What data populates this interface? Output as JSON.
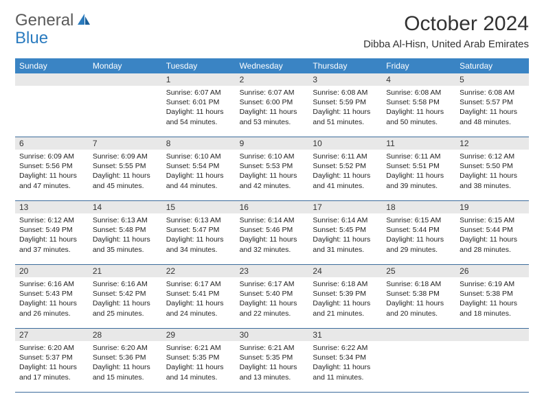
{
  "logo": {
    "text1": "General",
    "text2": "Blue"
  },
  "title": "October 2024",
  "location": "Dibba Al-Hisn, United Arab Emirates",
  "colors": {
    "header_bg": "#3a84c4",
    "header_text": "#ffffff",
    "daynum_bg": "#e8e8e8",
    "week_border": "#3a6a9a",
    "logo_gray": "#5a5a5a",
    "logo_blue": "#2a7bbf"
  },
  "day_names": [
    "Sunday",
    "Monday",
    "Tuesday",
    "Wednesday",
    "Thursday",
    "Friday",
    "Saturday"
  ],
  "weeks": [
    [
      {
        "day": "",
        "sunrise": "",
        "sunset": "",
        "daylight": ""
      },
      {
        "day": "",
        "sunrise": "",
        "sunset": "",
        "daylight": ""
      },
      {
        "day": "1",
        "sunrise": "Sunrise: 6:07 AM",
        "sunset": "Sunset: 6:01 PM",
        "daylight": "Daylight: 11 hours and 54 minutes."
      },
      {
        "day": "2",
        "sunrise": "Sunrise: 6:07 AM",
        "sunset": "Sunset: 6:00 PM",
        "daylight": "Daylight: 11 hours and 53 minutes."
      },
      {
        "day": "3",
        "sunrise": "Sunrise: 6:08 AM",
        "sunset": "Sunset: 5:59 PM",
        "daylight": "Daylight: 11 hours and 51 minutes."
      },
      {
        "day": "4",
        "sunrise": "Sunrise: 6:08 AM",
        "sunset": "Sunset: 5:58 PM",
        "daylight": "Daylight: 11 hours and 50 minutes."
      },
      {
        "day": "5",
        "sunrise": "Sunrise: 6:08 AM",
        "sunset": "Sunset: 5:57 PM",
        "daylight": "Daylight: 11 hours and 48 minutes."
      }
    ],
    [
      {
        "day": "6",
        "sunrise": "Sunrise: 6:09 AM",
        "sunset": "Sunset: 5:56 PM",
        "daylight": "Daylight: 11 hours and 47 minutes."
      },
      {
        "day": "7",
        "sunrise": "Sunrise: 6:09 AM",
        "sunset": "Sunset: 5:55 PM",
        "daylight": "Daylight: 11 hours and 45 minutes."
      },
      {
        "day": "8",
        "sunrise": "Sunrise: 6:10 AM",
        "sunset": "Sunset: 5:54 PM",
        "daylight": "Daylight: 11 hours and 44 minutes."
      },
      {
        "day": "9",
        "sunrise": "Sunrise: 6:10 AM",
        "sunset": "Sunset: 5:53 PM",
        "daylight": "Daylight: 11 hours and 42 minutes."
      },
      {
        "day": "10",
        "sunrise": "Sunrise: 6:11 AM",
        "sunset": "Sunset: 5:52 PM",
        "daylight": "Daylight: 11 hours and 41 minutes."
      },
      {
        "day": "11",
        "sunrise": "Sunrise: 6:11 AM",
        "sunset": "Sunset: 5:51 PM",
        "daylight": "Daylight: 11 hours and 39 minutes."
      },
      {
        "day": "12",
        "sunrise": "Sunrise: 6:12 AM",
        "sunset": "Sunset: 5:50 PM",
        "daylight": "Daylight: 11 hours and 38 minutes."
      }
    ],
    [
      {
        "day": "13",
        "sunrise": "Sunrise: 6:12 AM",
        "sunset": "Sunset: 5:49 PM",
        "daylight": "Daylight: 11 hours and 37 minutes."
      },
      {
        "day": "14",
        "sunrise": "Sunrise: 6:13 AM",
        "sunset": "Sunset: 5:48 PM",
        "daylight": "Daylight: 11 hours and 35 minutes."
      },
      {
        "day": "15",
        "sunrise": "Sunrise: 6:13 AM",
        "sunset": "Sunset: 5:47 PM",
        "daylight": "Daylight: 11 hours and 34 minutes."
      },
      {
        "day": "16",
        "sunrise": "Sunrise: 6:14 AM",
        "sunset": "Sunset: 5:46 PM",
        "daylight": "Daylight: 11 hours and 32 minutes."
      },
      {
        "day": "17",
        "sunrise": "Sunrise: 6:14 AM",
        "sunset": "Sunset: 5:45 PM",
        "daylight": "Daylight: 11 hours and 31 minutes."
      },
      {
        "day": "18",
        "sunrise": "Sunrise: 6:15 AM",
        "sunset": "Sunset: 5:44 PM",
        "daylight": "Daylight: 11 hours and 29 minutes."
      },
      {
        "day": "19",
        "sunrise": "Sunrise: 6:15 AM",
        "sunset": "Sunset: 5:44 PM",
        "daylight": "Daylight: 11 hours and 28 minutes."
      }
    ],
    [
      {
        "day": "20",
        "sunrise": "Sunrise: 6:16 AM",
        "sunset": "Sunset: 5:43 PM",
        "daylight": "Daylight: 11 hours and 26 minutes."
      },
      {
        "day": "21",
        "sunrise": "Sunrise: 6:16 AM",
        "sunset": "Sunset: 5:42 PM",
        "daylight": "Daylight: 11 hours and 25 minutes."
      },
      {
        "day": "22",
        "sunrise": "Sunrise: 6:17 AM",
        "sunset": "Sunset: 5:41 PM",
        "daylight": "Daylight: 11 hours and 24 minutes."
      },
      {
        "day": "23",
        "sunrise": "Sunrise: 6:17 AM",
        "sunset": "Sunset: 5:40 PM",
        "daylight": "Daylight: 11 hours and 22 minutes."
      },
      {
        "day": "24",
        "sunrise": "Sunrise: 6:18 AM",
        "sunset": "Sunset: 5:39 PM",
        "daylight": "Daylight: 11 hours and 21 minutes."
      },
      {
        "day": "25",
        "sunrise": "Sunrise: 6:18 AM",
        "sunset": "Sunset: 5:38 PM",
        "daylight": "Daylight: 11 hours and 20 minutes."
      },
      {
        "day": "26",
        "sunrise": "Sunrise: 6:19 AM",
        "sunset": "Sunset: 5:38 PM",
        "daylight": "Daylight: 11 hours and 18 minutes."
      }
    ],
    [
      {
        "day": "27",
        "sunrise": "Sunrise: 6:20 AM",
        "sunset": "Sunset: 5:37 PM",
        "daylight": "Daylight: 11 hours and 17 minutes."
      },
      {
        "day": "28",
        "sunrise": "Sunrise: 6:20 AM",
        "sunset": "Sunset: 5:36 PM",
        "daylight": "Daylight: 11 hours and 15 minutes."
      },
      {
        "day": "29",
        "sunrise": "Sunrise: 6:21 AM",
        "sunset": "Sunset: 5:35 PM",
        "daylight": "Daylight: 11 hours and 14 minutes."
      },
      {
        "day": "30",
        "sunrise": "Sunrise: 6:21 AM",
        "sunset": "Sunset: 5:35 PM",
        "daylight": "Daylight: 11 hours and 13 minutes."
      },
      {
        "day": "31",
        "sunrise": "Sunrise: 6:22 AM",
        "sunset": "Sunset: 5:34 PM",
        "daylight": "Daylight: 11 hours and 11 minutes."
      },
      {
        "day": "",
        "sunrise": "",
        "sunset": "",
        "daylight": ""
      },
      {
        "day": "",
        "sunrise": "",
        "sunset": "",
        "daylight": ""
      }
    ]
  ]
}
